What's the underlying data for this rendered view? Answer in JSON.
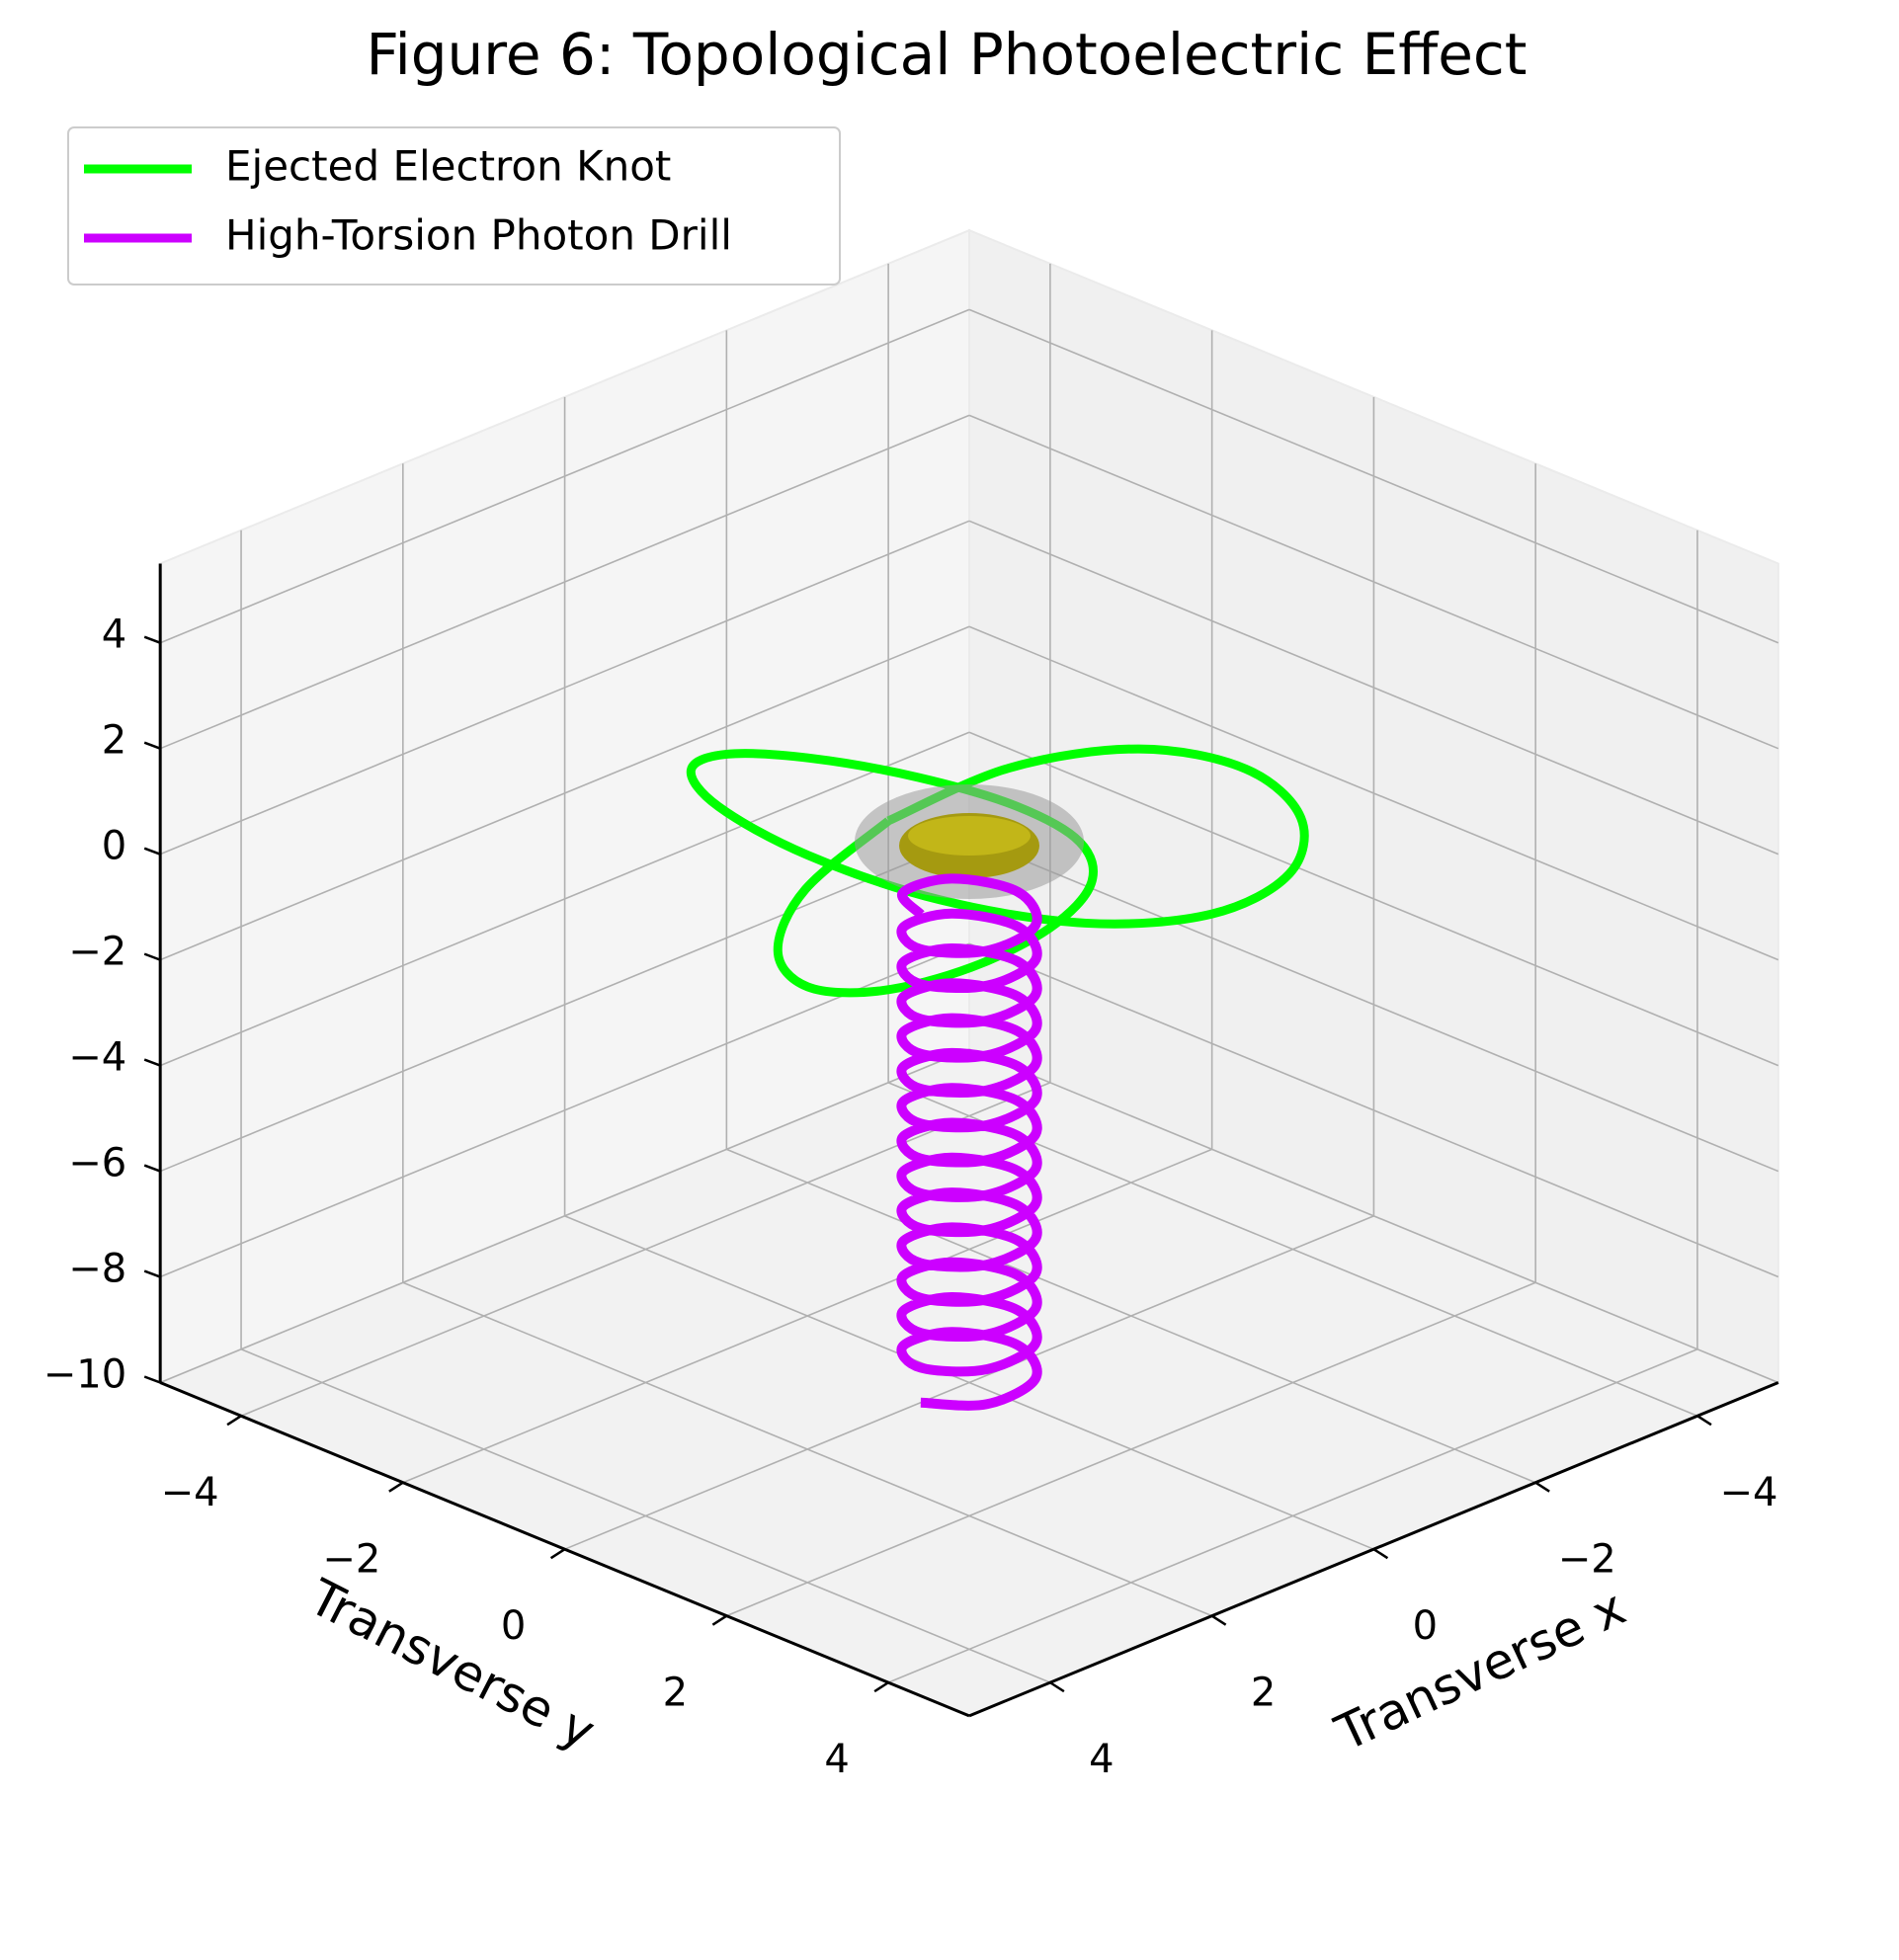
{
  "chart_data": {
    "type": "line3d",
    "title": "Figure 6: Topological Photoelectric Effect",
    "xlabel": "Transverse x",
    "ylabel": "Transverse y",
    "xlim": [
      -5,
      5
    ],
    "ylim": [
      -5,
      5
    ],
    "zlim": [
      -10,
      5.5
    ],
    "xticks": [
      {
        "value": -4,
        "label": "−4"
      },
      {
        "value": -2,
        "label": "−2"
      },
      0,
      2,
      4
    ],
    "yticks": [
      {
        "value": -4,
        "label": "−4"
      },
      {
        "value": -2,
        "label": "−2"
      },
      0,
      2,
      4
    ],
    "zticks": [
      {
        "value": -10,
        "label": "−10"
      },
      {
        "value": -8,
        "label": "−8"
      },
      {
        "value": -6,
        "label": "−6"
      },
      {
        "value": -4,
        "label": "−4"
      },
      {
        "value": -2,
        "label": "−2"
      },
      0,
      2,
      4
    ],
    "grid": true,
    "legend": "upper left",
    "series": [
      {
        "name": "Ejected Electron Knot",
        "color": "#00ff00",
        "x": [
          0,
          1.259,
          2.232,
          2.707,
          2.598,
          1.966,
          1,
          -0.034,
          -0.866,
          -1.293,
          -1.232,
          -0.741,
          0,
          0.741,
          1.232,
          1.293,
          0.866,
          0.034,
          -1,
          -1.966,
          -2.598,
          -2.707,
          -2.232,
          -1.259,
          0
        ],
        "y": [
          -1,
          -0.766,
          -0.134,
          0.707,
          1.5,
          1.991,
          2,
          1.473,
          0.5,
          -0.707,
          -1.866,
          -2.698,
          -3,
          -2.698,
          -1.866,
          -0.707,
          0.5,
          1.473,
          2,
          1.991,
          1.5,
          0.707,
          -0.134,
          -0.766,
          -1
        ],
        "z": [
          0,
          -0.354,
          -0.5,
          -0.354,
          0,
          0.354,
          0.5,
          0.354,
          0,
          -0.354,
          -0.5,
          -0.354,
          0,
          0.354,
          0.5,
          0.354,
          0,
          -0.354,
          -0.5,
          -0.354,
          0,
          0.354,
          0.5,
          0.354,
          0
        ]
      },
      {
        "name": "High-Torsion Photon Drill",
        "color": "#cc00ff",
        "x": [
          0.6,
          0.3,
          -0.3,
          -0.6,
          -0.3,
          0.3,
          0.6,
          0.3,
          -0.3,
          -0.6,
          -0.3,
          0.3,
          0.6,
          0.3,
          -0.3,
          -0.6,
          -0.3,
          0.3,
          0.6,
          0.3,
          -0.3,
          -0.6,
          -0.3,
          0.3,
          0.6,
          0.3,
          -0.3,
          -0.6,
          -0.3,
          0.3,
          0.6,
          0.3,
          -0.3,
          -0.6,
          -0.3,
          0.3,
          0.6,
          0.3,
          -0.3,
          -0.6,
          -0.3,
          0.3,
          0.6,
          0.3,
          -0.3,
          -0.6,
          -0.3,
          0.3,
          0.6,
          0.3,
          -0.3,
          -0.6,
          -0.3,
          0.3,
          0.6,
          0.3,
          -0.3,
          -0.6,
          -0.3,
          0.3,
          0.6,
          0.3,
          -0.3,
          -0.6,
          -0.3,
          0.3,
          0.6,
          0.3,
          -0.3,
          -0.6,
          -0.3,
          0.3,
          0.6,
          0.3,
          -0.3,
          -0.6,
          -0.3,
          0.3,
          0.6,
          0.3,
          -0.3,
          -0.6,
          -0.3,
          0.3,
          0.6
        ],
        "y": [
          0,
          0.52,
          0.52,
          0,
          -0.52,
          -0.52,
          0,
          0.52,
          0.52,
          0,
          -0.52,
          -0.52,
          0,
          0.52,
          0.52,
          0,
          -0.52,
          -0.52,
          0,
          0.52,
          0.52,
          0,
          -0.52,
          -0.52,
          0,
          0.52,
          0.52,
          0,
          -0.52,
          -0.52,
          0,
          0.52,
          0.52,
          0,
          -0.52,
          -0.52,
          0,
          0.52,
          0.52,
          0,
          -0.52,
          -0.52,
          0,
          0.52,
          0.52,
          0,
          -0.52,
          -0.52,
          0,
          0.52,
          0.52,
          0,
          -0.52,
          -0.52,
          0,
          0.52,
          0.52,
          0,
          -0.52,
          -0.52,
          0,
          0.52,
          0.52,
          0,
          -0.52,
          -0.52,
          0,
          0.52,
          0.52,
          0,
          -0.52,
          -0.52,
          0,
          0.52,
          0.52,
          0,
          -0.52,
          -0.52,
          0,
          0.52,
          0.52,
          0,
          -0.52,
          -0.52,
          0
        ],
        "z": [
          -10,
          -9.89,
          -9.78,
          -9.67,
          -9.56,
          -9.45,
          -9.34,
          -9.23,
          -9.12,
          -9.01,
          -8.9,
          -8.79,
          -8.68,
          -8.57,
          -8.46,
          -8.35,
          -8.24,
          -8.13,
          -8.02,
          -7.91,
          -7.8,
          -7.69,
          -7.58,
          -7.47,
          -7.36,
          -7.25,
          -7.14,
          -7.03,
          -6.92,
          -6.81,
          -6.7,
          -6.59,
          -6.48,
          -6.37,
          -6.26,
          -6.15,
          -6.04,
          -5.93,
          -5.82,
          -5.71,
          -5.6,
          -5.49,
          -5.38,
          -5.27,
          -5.16,
          -5.05,
          -4.94,
          -4.83,
          -4.72,
          -4.61,
          -4.5,
          -4.39,
          -4.28,
          -4.17,
          -4.06,
          -3.95,
          -3.84,
          -3.73,
          -3.62,
          -3.51,
          -3.4,
          -3.29,
          -3.18,
          -3.07,
          -2.96,
          -2.85,
          -2.74,
          -2.63,
          -2.52,
          -2.41,
          -2.3,
          -2.19,
          -2.08,
          -1.97,
          -1.86,
          -1.75,
          -1.64,
          -1.53,
          -1.42,
          -1.31,
          -1.2,
          -1.09,
          -0.98,
          -0.87,
          -0.76
        ]
      }
    ]
  }
}
